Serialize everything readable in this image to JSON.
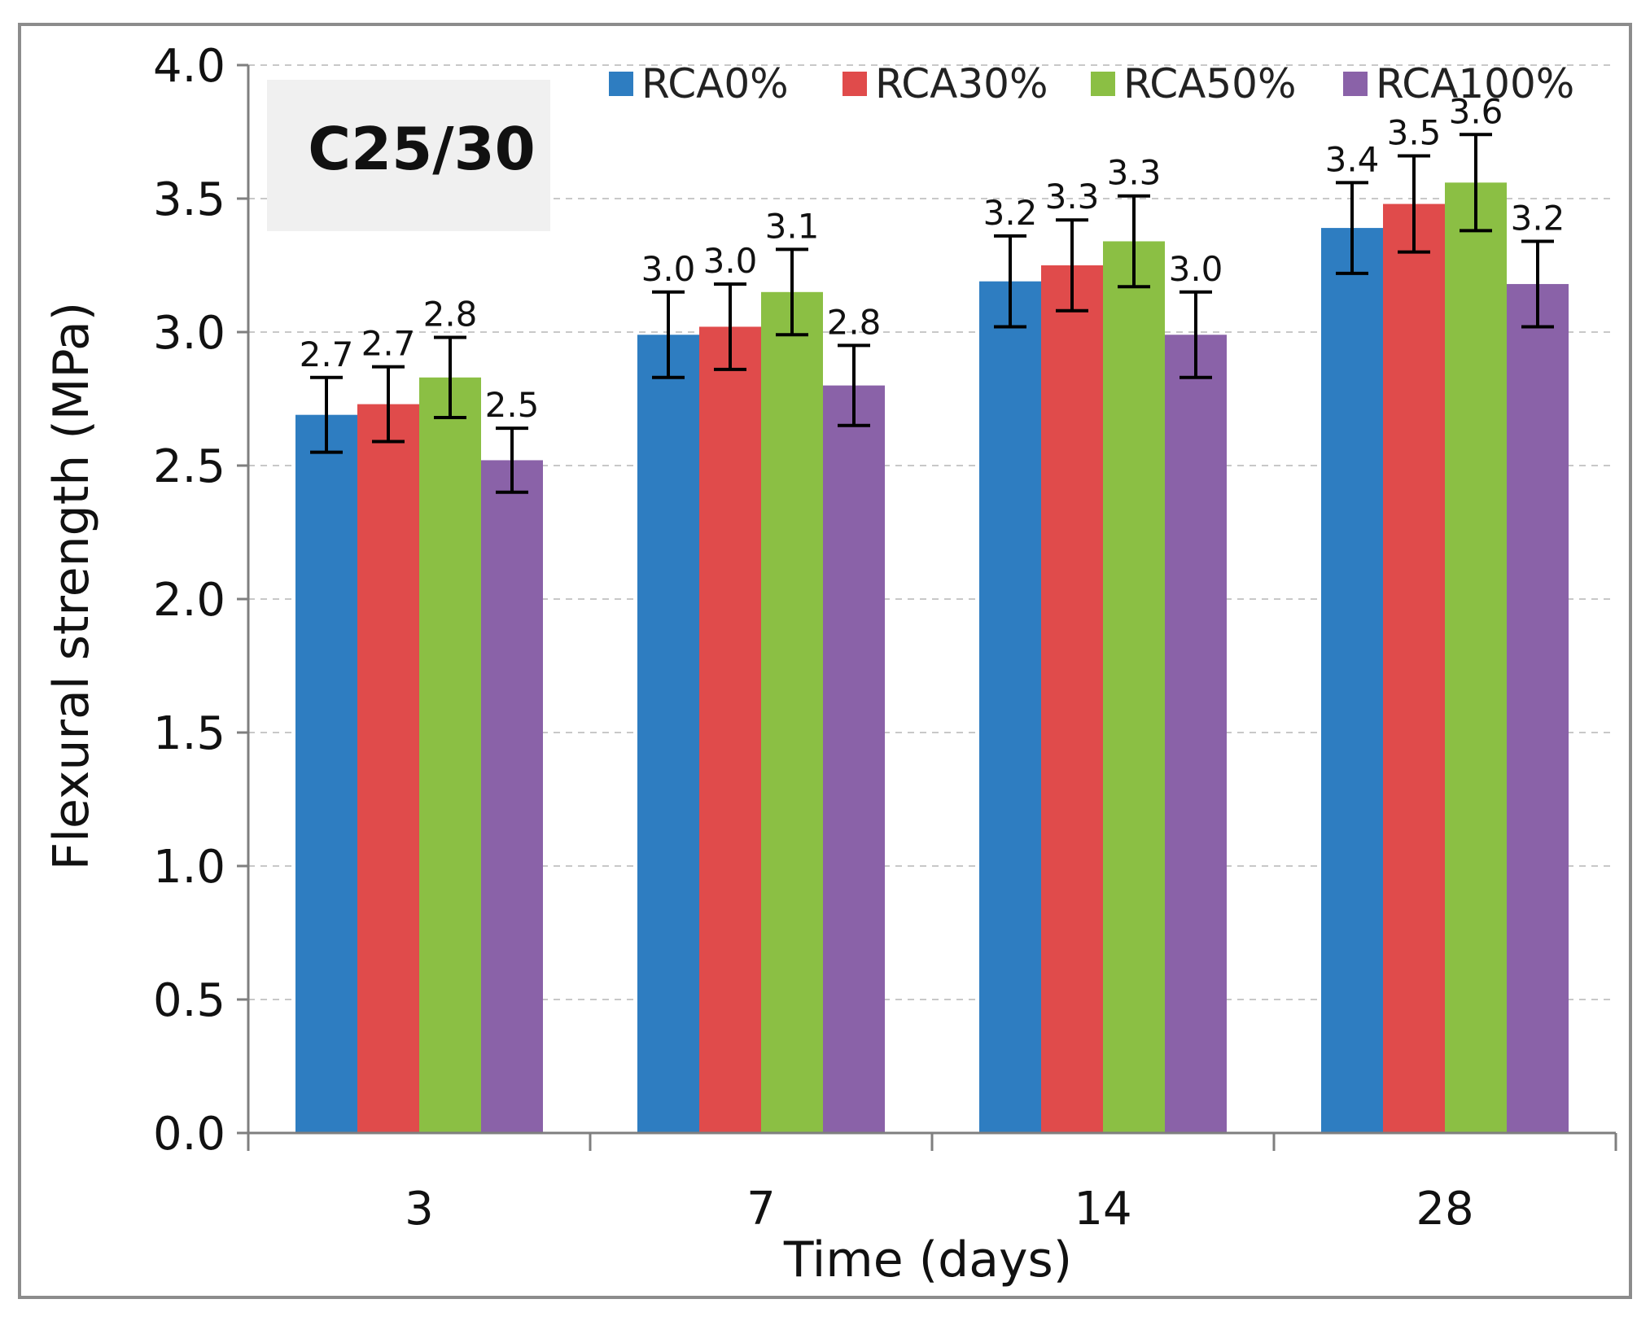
{
  "chart_data": {
    "type": "bar",
    "categories": [
      "3",
      "7",
      "14",
      "28"
    ],
    "series": [
      {
        "name": "RCA0%",
        "color": "#2e7dc1",
        "values": [
          2.69,
          2.99,
          3.19,
          3.39
        ],
        "errors": [
          0.14,
          0.16,
          0.17,
          0.17
        ],
        "labels": [
          "2.7",
          "3.0",
          "3.2",
          "3.4"
        ]
      },
      {
        "name": "RCA30%",
        "color": "#e04b4b",
        "values": [
          2.73,
          3.02,
          3.25,
          3.48
        ],
        "errors": [
          0.14,
          0.16,
          0.17,
          0.18
        ],
        "labels": [
          "2.7",
          "3.0",
          "3.3",
          "3.5"
        ]
      },
      {
        "name": "RCA50%",
        "color": "#8bbf44",
        "values": [
          2.83,
          3.15,
          3.34,
          3.56
        ],
        "errors": [
          0.15,
          0.16,
          0.17,
          0.18
        ],
        "labels": [
          "2.8",
          "3.1",
          "3.3",
          "3.6"
        ]
      },
      {
        "name": "RCA100%",
        "color": "#8a62a8",
        "values": [
          2.52,
          2.8,
          2.99,
          3.18
        ],
        "errors": [
          0.12,
          0.15,
          0.16,
          0.16
        ],
        "labels": [
          "2.5",
          "2.8",
          "3.0",
          "3.2"
        ]
      }
    ],
    "inset_label": "C25/30",
    "xlabel": "Time (days)",
    "ylabel": "Flexural strength (MPa)",
    "ylim": [
      0,
      4.0
    ],
    "yticks": [
      "0.0",
      "0.5",
      "1.0",
      "1.5",
      "2.0",
      "2.5",
      "3.0",
      "3.5",
      "4.0"
    ],
    "grid": true,
    "legend_position": "top"
  }
}
